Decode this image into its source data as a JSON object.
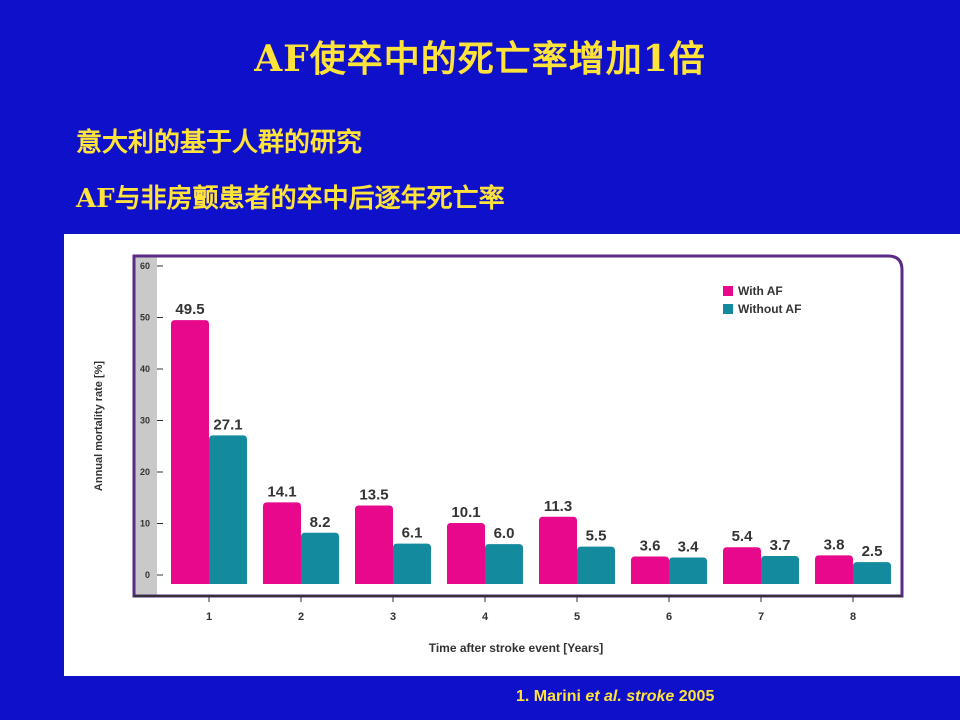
{
  "slide": {
    "title": "AF使卒中的死亡率增加1倍",
    "subtitle_1": "意大利的基于人群的研究",
    "subtitle_2": "AF与非房颤患者的卒中后逐年死亡率",
    "citation_prefix": "1. Marini ",
    "citation_italic": "et al. stroke",
    "citation_suffix": " 2005"
  },
  "chart_data": {
    "type": "bar",
    "title": "",
    "xlabel": "Time after stroke event [Years]",
    "ylabel": "Annual mortality rate [%]",
    "ylim": [
      0,
      60
    ],
    "yticks": [
      0,
      10,
      20,
      30,
      40,
      50,
      60
    ],
    "categories": [
      "1",
      "2",
      "3",
      "4",
      "5",
      "6",
      "7",
      "8"
    ],
    "series": [
      {
        "name": "With AF",
        "color": "#e8088c",
        "values": [
          49.5,
          14.1,
          13.5,
          10.1,
          11.3,
          3.6,
          5.4,
          3.8
        ],
        "labels": [
          "49.5",
          "14.1",
          "13.5",
          "10.1",
          "11.3",
          "3.6",
          "5.4",
          "3.8"
        ]
      },
      {
        "name": "Without AF",
        "color": "#138a9e",
        "values": [
          27.1,
          8.2,
          6.1,
          6.0,
          5.5,
          3.4,
          3.7,
          2.5
        ],
        "labels": [
          "27.1",
          "8.2",
          "6.1",
          "6.0",
          "5.5",
          "3.4",
          "3.7",
          "2.5"
        ]
      }
    ],
    "legend_position": "top-right",
    "frame_color": "#5b2a86",
    "axis_band_color": "#c9c9c9"
  }
}
